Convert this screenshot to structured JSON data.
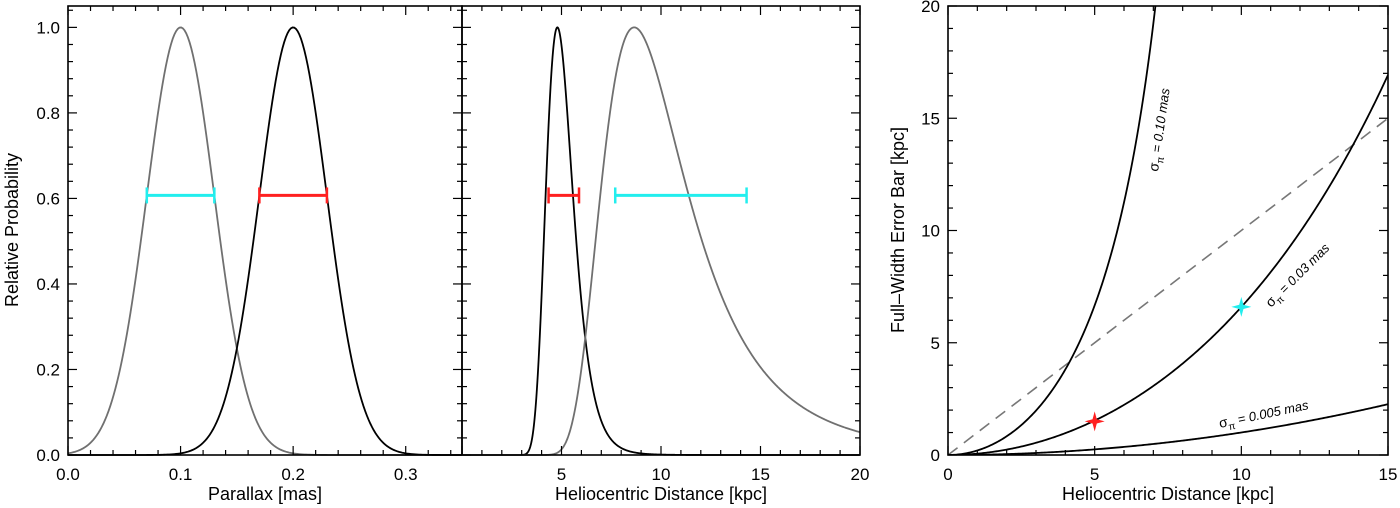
{
  "colors": {
    "black_curve": "#000000",
    "gray_curve": "#707070",
    "red": "#ff2020",
    "cyan": "#22eeee",
    "dashed": "#777777"
  },
  "chart_data": [
    {
      "type": "line",
      "xlabel": "Parallax  [mas]",
      "ylabel": "Relative Probability",
      "xlim": [
        0.0,
        0.35
      ],
      "ylim": [
        0.0,
        1.05
      ],
      "xticks": [
        "0.0",
        "0.1",
        "0.2",
        "0.3"
      ],
      "xtick_values": [
        0.0,
        0.1,
        0.2,
        0.3
      ],
      "yticks": [
        "0.0",
        "0.2",
        "0.4",
        "0.6",
        "0.8",
        "1.0"
      ],
      "ytick_values": [
        0.0,
        0.2,
        0.4,
        0.6,
        0.8,
        1.0
      ],
      "series": [
        {
          "color": "gray",
          "shape": "gaussian",
          "peak_x": 0.1,
          "peak_y": 1.0,
          "sigma": 0.03
        },
        {
          "color": "black",
          "shape": "gaussian",
          "peak_x": 0.2,
          "peak_y": 1.0,
          "sigma": 0.03
        }
      ],
      "error_bars": [
        {
          "color": "cyan",
          "x_start": 0.07,
          "x_end": 0.13,
          "y": 0.607
        },
        {
          "color": "red",
          "x_start": 0.17,
          "x_end": 0.23,
          "y": 0.607
        }
      ]
    },
    {
      "type": "line",
      "xlabel": "Heliocentric Distance  [kpc]",
      "xlim": [
        0,
        20
      ],
      "ylim": [
        0.0,
        1.05
      ],
      "xticks": [
        "5",
        "10",
        "15",
        "20"
      ],
      "xtick_values": [
        5,
        10,
        15,
        20
      ],
      "series": [
        {
          "color": "black",
          "shape": "inverse-parallax",
          "peak_x": 5,
          "peak_y": 1.0
        },
        {
          "color": "gray",
          "shape": "inverse-parallax",
          "peak_x": 10,
          "peak_y": 1.0
        }
      ],
      "error_bars": [
        {
          "color": "red",
          "x_start": 4.35,
          "x_end": 5.88,
          "y": 0.607
        },
        {
          "color": "cyan",
          "x_start": 7.7,
          "x_end": 14.3,
          "y": 0.607
        }
      ]
    },
    {
      "type": "line",
      "xlabel": "Heliocentric Distance  [kpc]",
      "ylabel": "Full–Width Error Bar  [kpc]",
      "xlim": [
        0,
        15
      ],
      "ylim": [
        0,
        20
      ],
      "xticks": [
        "0",
        "5",
        "10",
        "15"
      ],
      "xtick_values": [
        0,
        5,
        10,
        15
      ],
      "yticks": [
        "0",
        "5",
        "10",
        "15",
        "20"
      ],
      "ytick_values": [
        0,
        5,
        10,
        15,
        20
      ],
      "series": [
        {
          "label": "σπ = 0.10 mas",
          "sigma_pi": 0.1
        },
        {
          "label": "σπ = 0.03 mas",
          "sigma_pi": 0.03
        },
        {
          "label": "σπ = 0.005 mas",
          "sigma_pi": 0.005
        }
      ],
      "reference_line": {
        "style": "dashed",
        "slope": 1,
        "intercept": 0
      },
      "markers": [
        {
          "color": "red",
          "shape": "star",
          "x": 5,
          "y": 1.5
        },
        {
          "color": "cyan",
          "shape": "star",
          "x": 10,
          "y": 6.6
        }
      ]
    }
  ],
  "annotations": {
    "label_010": {
      "sigma": "σ",
      "sub": "π",
      "rest": " = 0.10 mas"
    },
    "label_003": {
      "sigma": "σ",
      "sub": "π",
      "rest": " = 0.03 mas"
    },
    "label_0005": {
      "sigma": "σ",
      "sub": "π",
      "rest": " = 0.005 mas"
    }
  }
}
